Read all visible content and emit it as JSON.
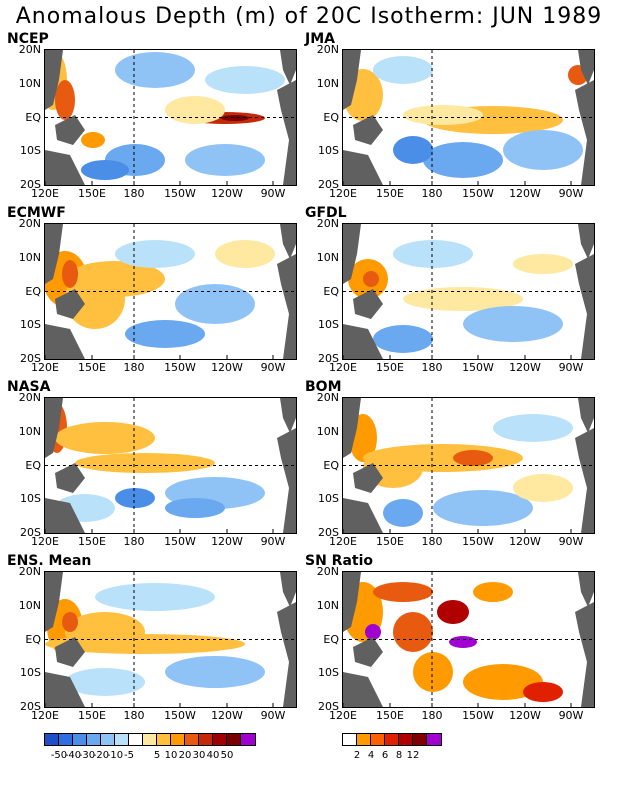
{
  "title": "Anomalous Depth (m) of 20C Isotherm: JUN 1989",
  "latitude_labels": [
    "20N",
    "10N",
    "EQ",
    "10S",
    "20S"
  ],
  "longitude_labels": [
    "120E",
    "150E",
    "180",
    "150W",
    "120W",
    "90W"
  ],
  "panels": [
    {
      "name": "NCEP"
    },
    {
      "name": "JMA"
    },
    {
      "name": "ECMWF"
    },
    {
      "name": "GFDL"
    },
    {
      "name": "NASA"
    },
    {
      "name": "BOM"
    },
    {
      "name": "ENS. Mean"
    },
    {
      "name": "SN Ratio"
    }
  ],
  "colorbar_anomaly": {
    "labels": [
      "-50",
      "-40",
      "-30",
      "-20",
      "-10",
      "-5",
      "5",
      "10",
      "20",
      "30",
      "40",
      "50"
    ],
    "colors": [
      "#1f4fc8",
      "#2d6fe0",
      "#4a8ee8",
      "#6aa8f0",
      "#8fc3f5",
      "#b9e2fa",
      "#ffffff",
      "#ffe8a0",
      "#ffc040",
      "#ff9a00",
      "#e85a10",
      "#c42808",
      "#a00000",
      "#7a0000",
      "#a000d0"
    ]
  },
  "colorbar_snratio": {
    "labels": [
      "2",
      "4",
      "6",
      "8",
      "12"
    ],
    "colors": [
      "#ffffff",
      "#ff9a00",
      "#ff6000",
      "#e02000",
      "#b00000",
      "#800000",
      "#a000d0"
    ]
  },
  "colors": {
    "land": "#606060",
    "grid": "#000000"
  }
}
